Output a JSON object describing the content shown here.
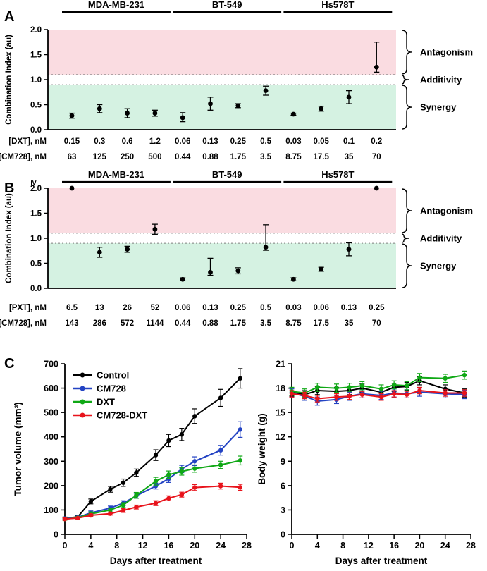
{
  "chart_data": [
    {
      "id": "panel_A_combination_index_DXT",
      "type": "scatter",
      "panel_label": "A",
      "groups": [
        "MDA-MB-231",
        "BT-549",
        "Hs578T"
      ],
      "ylabel": "Combination Index (au)",
      "ylim": [
        0,
        2.0
      ],
      "yticks": [
        "0.0",
        "0.5",
        "1.0",
        "1.5",
        "2.0"
      ],
      "cap_label": null,
      "regions": [
        {
          "name": "Antagonism",
          "from": 1.1,
          "to": 2.0,
          "color": "#FADCE1"
        },
        {
          "name": "Additivity",
          "from": 0.9,
          "to": 1.1,
          "color": "#FFFFFF"
        },
        {
          "name": "Synergy",
          "from": 0.0,
          "to": 0.9,
          "color": "#D5F2E2"
        }
      ],
      "values": [
        0.28,
        0.42,
        0.33,
        0.33,
        0.24,
        0.52,
        0.48,
        0.78,
        0.31,
        0.42,
        0.65,
        1.25
      ],
      "err_up": [
        0.05,
        0.08,
        0.09,
        0.06,
        0.1,
        0.13,
        0.04,
        0.09,
        0.02,
        0.05,
        0.13,
        0.5
      ],
      "err_down": [
        0.05,
        0.08,
        0.09,
        0.06,
        0.08,
        0.13,
        0.04,
        0.09,
        0.02,
        0.05,
        0.13,
        0.1
      ],
      "xrows": [
        {
          "label": "[DXT], nM",
          "values": [
            "0.15",
            "0.3",
            "0.6",
            "1.2",
            "0.06",
            "0.13",
            "0.25",
            "0.5",
            "0.03",
            "0.05",
            "0.1",
            "0.2"
          ]
        },
        {
          "label": "[CM728], nM",
          "values": [
            "63",
            "125",
            "250",
            "500",
            "0.44",
            "0.88",
            "1.75",
            "3.5",
            "8.75",
            "17.5",
            "35",
            "70"
          ]
        }
      ]
    },
    {
      "id": "panel_B_combination_index_PXT",
      "type": "scatter",
      "panel_label": "B",
      "groups": [
        "MDA-MB-231",
        "BT-549",
        "Hs578T"
      ],
      "ylabel": "Combination Index (au)",
      "ylim": [
        0,
        2.0
      ],
      "yticks": [
        "0.0",
        "0.5",
        "1.0",
        "1.5",
        "2.0"
      ],
      "cap_label": "≥",
      "regions": [
        {
          "name": "Antagonism",
          "from": 1.1,
          "to": 2.0,
          "color": "#FADCE1"
        },
        {
          "name": "Additivity",
          "from": 0.9,
          "to": 1.1,
          "color": "#FFFFFF"
        },
        {
          "name": "Synergy",
          "from": 0.0,
          "to": 0.9,
          "color": "#D5F2E2"
        }
      ],
      "values": [
        2.0,
        0.72,
        0.78,
        1.18,
        0.18,
        0.32,
        0.35,
        0.82,
        0.18,
        0.38,
        0.78,
        2.0
      ],
      "err_up": [
        0,
        0.1,
        0.06,
        0.1,
        0.03,
        0.28,
        0.06,
        0.45,
        0.03,
        0.04,
        0.13,
        0
      ],
      "err_down": [
        0,
        0.1,
        0.06,
        0.1,
        0.03,
        0.06,
        0.06,
        0.06,
        0.03,
        0.04,
        0.13,
        0
      ],
      "xrows": [
        {
          "label": "[PXT], nM",
          "values": [
            "6.5",
            "13",
            "26",
            "52",
            "0.06",
            "0.13",
            "0.25",
            "0.5",
            "0.03",
            "0.06",
            "0.13",
            "0.25"
          ]
        },
        {
          "label": "[CM728], nM",
          "values": [
            "143",
            "286",
            "572",
            "1144",
            "0.44",
            "0.88",
            "1.75",
            "3.5",
            "8.75",
            "17.5",
            "35",
            "70"
          ]
        }
      ]
    },
    {
      "id": "panel_C_tumor_volume",
      "type": "line",
      "panel_label": "C",
      "xlabel": "Days after treatment",
      "ylabel": "Tumor volume (mm³)",
      "xlim": [
        0,
        28
      ],
      "ylim": [
        0,
        700
      ],
      "xticks": [
        0,
        4,
        8,
        12,
        16,
        20,
        24,
        28
      ],
      "yticks": [
        0,
        100,
        200,
        300,
        400,
        500,
        600,
        700
      ],
      "x": [
        0,
        2,
        4,
        7,
        9,
        11,
        14,
        16,
        18,
        20,
        24,
        27
      ],
      "legend": true,
      "series": [
        {
          "name": "Control",
          "color": "#000000",
          "values": [
            65,
            72,
            135,
            185,
            212,
            253,
            325,
            385,
            410,
            485,
            560,
            640
          ],
          "err": [
            6,
            6,
            10,
            12,
            15,
            15,
            22,
            25,
            25,
            30,
            35,
            40
          ]
        },
        {
          "name": "CM728",
          "color": "#2343C3",
          "values": [
            65,
            70,
            88,
            108,
            128,
            158,
            198,
            228,
            268,
            300,
            345,
            430
          ],
          "err": [
            5,
            5,
            8,
            8,
            10,
            10,
            12,
            15,
            15,
            18,
            20,
            32
          ]
        },
        {
          "name": "DXT",
          "color": "#0FA815",
          "values": [
            63,
            68,
            84,
            100,
            120,
            160,
            218,
            245,
            258,
            270,
            285,
            303
          ],
          "err": [
            5,
            5,
            8,
            8,
            10,
            12,
            16,
            15,
            15,
            15,
            15,
            18
          ]
        },
        {
          "name": "CM728-DXT",
          "color": "#E8131B",
          "values": [
            63,
            67,
            78,
            85,
            98,
            112,
            128,
            148,
            163,
            192,
            198,
            193
          ],
          "err": [
            4,
            4,
            6,
            6,
            8,
            8,
            10,
            10,
            10,
            12,
            12,
            12
          ]
        }
      ]
    },
    {
      "id": "panel_C_body_weight",
      "type": "line",
      "xlabel": "Days after treatment",
      "ylabel": "Body weight (g)",
      "xlim": [
        0,
        28
      ],
      "ylim": [
        0,
        21
      ],
      "xticks": [
        0,
        4,
        8,
        12,
        16,
        20,
        24,
        28
      ],
      "yticks": [
        0,
        3,
        6,
        9,
        12,
        15,
        18,
        21
      ],
      "x": [
        0,
        2,
        4,
        7,
        9,
        11,
        14,
        16,
        18,
        20,
        24,
        27
      ],
      "legend": false,
      "series": [
        {
          "name": "Control",
          "color": "#000000",
          "values": [
            17.5,
            17.2,
            17.7,
            17.6,
            17.7,
            18.0,
            17.5,
            18.1,
            18.2,
            18.9,
            17.9,
            17.4
          ],
          "err": [
            0.5,
            0.5,
            0.5,
            0.5,
            0.5,
            0.5,
            0.5,
            0.5,
            0.5,
            0.5,
            0.5,
            0.5
          ]
        },
        {
          "name": "CM728",
          "color": "#2343C3",
          "values": [
            17.4,
            17.0,
            16.4,
            16.6,
            17.0,
            17.3,
            17.1,
            17.4,
            17.3,
            17.5,
            17.3,
            17.2
          ],
          "err": [
            0.5,
            0.5,
            0.5,
            0.5,
            0.5,
            0.5,
            0.5,
            0.5,
            0.5,
            0.5,
            0.5,
            0.5
          ]
        },
        {
          "name": "DXT",
          "color": "#0FA815",
          "values": [
            17.6,
            17.4,
            18.1,
            18.0,
            18.1,
            18.3,
            17.9,
            18.4,
            18.3,
            19.3,
            19.2,
            19.6
          ],
          "err": [
            0.5,
            0.5,
            0.5,
            0.5,
            0.5,
            0.5,
            0.5,
            0.5,
            0.5,
            0.5,
            0.5,
            0.5
          ]
        },
        {
          "name": "CM728-DXT",
          "color": "#E8131B",
          "values": [
            17.3,
            17.1,
            16.7,
            16.9,
            17.0,
            17.2,
            16.9,
            17.3,
            17.2,
            17.7,
            17.4,
            17.4
          ],
          "err": [
            0.4,
            0.4,
            0.4,
            0.4,
            0.4,
            0.4,
            0.4,
            0.4,
            0.4,
            0.4,
            0.4,
            0.4
          ]
        }
      ]
    }
  ]
}
